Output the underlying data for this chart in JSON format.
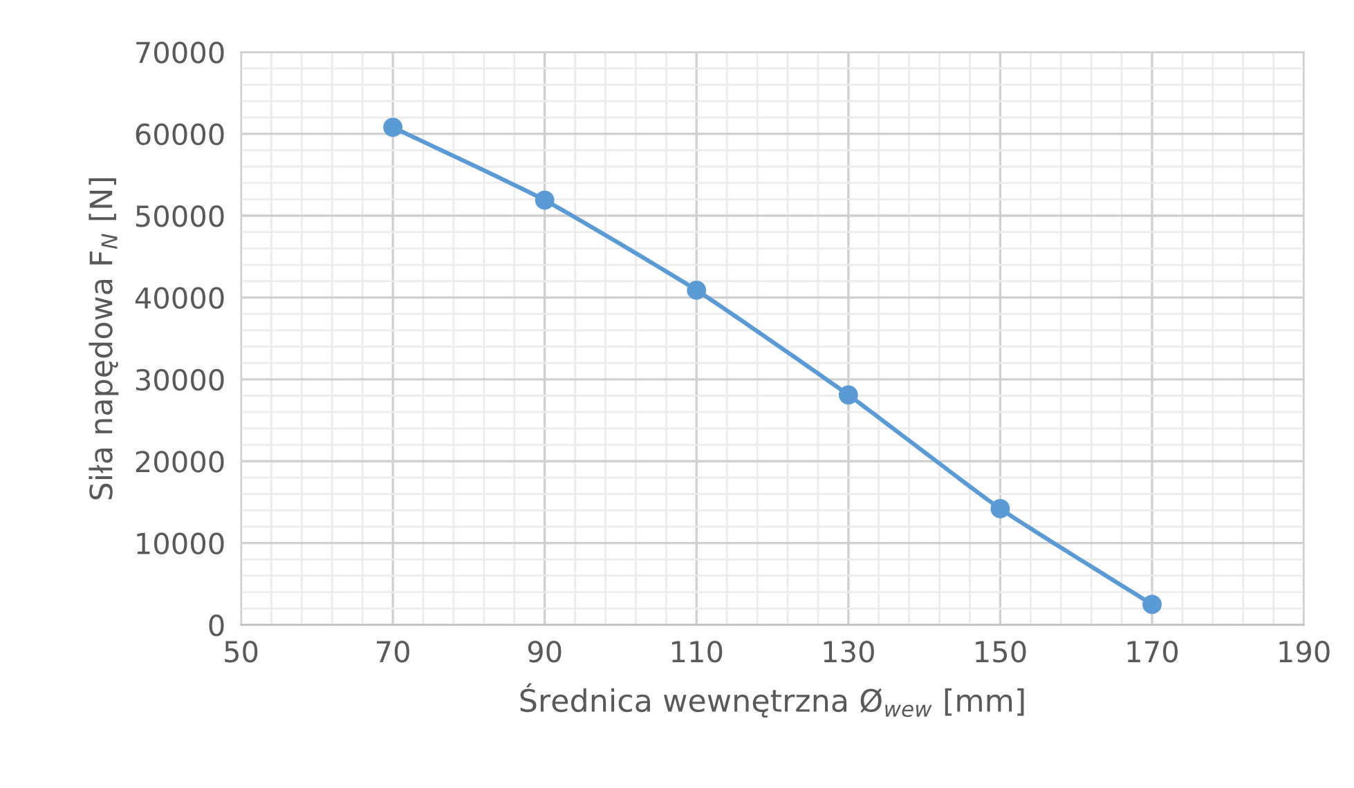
{
  "chart_data": {
    "type": "line",
    "xlabel": "Średnica wewnętrzna Ø$_{wew}$ [mm]",
    "ylabel": "Siła napędowa F$_{N}$ [N]",
    "x": [
      70,
      90,
      110,
      130,
      150,
      170
    ],
    "series": [
      {
        "color": "#5b9bd5",
        "values": [
          60800,
          51900,
          40900,
          28100,
          14200,
          2500
        ]
      }
    ],
    "xlim": [
      50,
      190
    ],
    "xticks": [
      50,
      70,
      90,
      110,
      130,
      150,
      170,
      190
    ],
    "ylim": [
      0,
      70000
    ],
    "yticks": [
      0,
      10000,
      20000,
      30000,
      40000,
      50000,
      60000,
      70000
    ],
    "grid": true,
    "marker": "circle",
    "line_style": "solid"
  }
}
